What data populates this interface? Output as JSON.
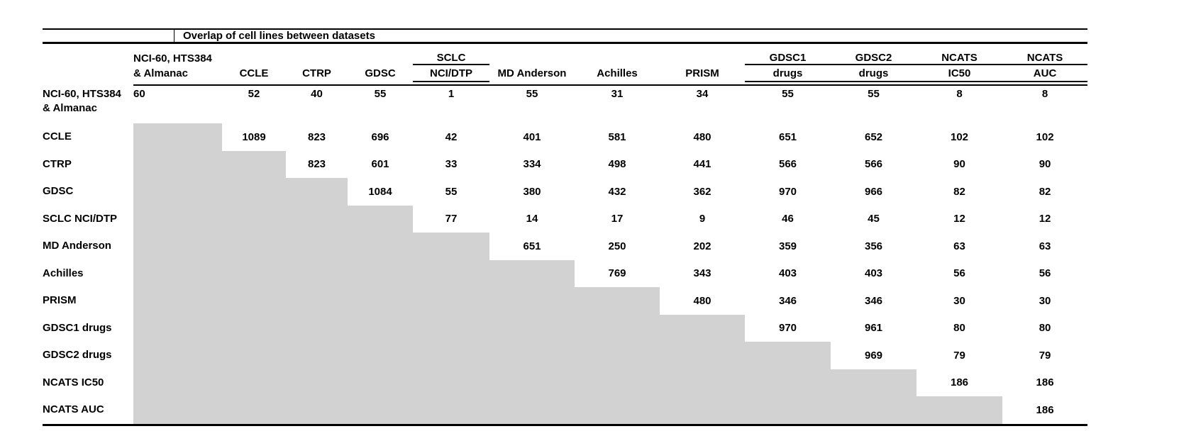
{
  "title": "Overlap of cell lines between datasets",
  "colors": {
    "background": "#ffffff",
    "text": "#000000",
    "rule": "#000000",
    "shaded_cell": "#d2d2d2"
  },
  "table": {
    "columns": [
      {
        "line1": "NCI-60, HTS384",
        "line2": "& Almanac",
        "spanner": false
      },
      {
        "line1": "",
        "line2": "CCLE",
        "spanner": false
      },
      {
        "line1": "",
        "line2": "CTRP",
        "spanner": false
      },
      {
        "line1": "",
        "line2": "GDSC",
        "spanner": false
      },
      {
        "line1": "SCLC",
        "line2": "NCI/DTP",
        "spanner": true
      },
      {
        "line1": "",
        "line2": "MD Anderson",
        "spanner": false
      },
      {
        "line1": "",
        "line2": "Achilles",
        "spanner": false
      },
      {
        "line1": "",
        "line2": "PRISM",
        "spanner": false
      },
      {
        "line1": "GDSC1",
        "line2": "drugs",
        "spanner": true
      },
      {
        "line1": "GDSC2",
        "line2": "drugs",
        "spanner": true
      },
      {
        "line1": "NCATS",
        "line2": "IC50",
        "spanner": true
      },
      {
        "line1": "NCATS",
        "line2": "AUC",
        "spanner": true
      }
    ],
    "rows": [
      {
        "label": "NCI-60, HTS384\n& Almanac",
        "values": [
          60,
          52,
          40,
          55,
          1,
          55,
          31,
          34,
          55,
          55,
          8,
          8
        ]
      },
      {
        "label": "CCLE",
        "values": [
          null,
          1089,
          823,
          696,
          42,
          401,
          581,
          480,
          651,
          652,
          102,
          102
        ]
      },
      {
        "label": "CTRP",
        "values": [
          null,
          null,
          823,
          601,
          33,
          334,
          498,
          441,
          566,
          566,
          90,
          90
        ]
      },
      {
        "label": "GDSC",
        "values": [
          null,
          null,
          null,
          1084,
          55,
          380,
          432,
          362,
          970,
          966,
          82,
          82
        ]
      },
      {
        "label": "SCLC NCI/DTP",
        "values": [
          null,
          null,
          null,
          null,
          77,
          14,
          17,
          9,
          46,
          45,
          12,
          12
        ]
      },
      {
        "label": "MD Anderson",
        "values": [
          null,
          null,
          null,
          null,
          null,
          651,
          250,
          202,
          359,
          356,
          63,
          63
        ]
      },
      {
        "label": "Achilles",
        "values": [
          null,
          null,
          null,
          null,
          null,
          null,
          769,
          343,
          403,
          403,
          56,
          56
        ]
      },
      {
        "label": "PRISM",
        "values": [
          null,
          null,
          null,
          null,
          null,
          null,
          null,
          480,
          346,
          346,
          30,
          30
        ]
      },
      {
        "label": "GDSC1 drugs",
        "values": [
          null,
          null,
          null,
          null,
          null,
          null,
          null,
          null,
          970,
          961,
          80,
          80
        ]
      },
      {
        "label": "GDSC2 drugs",
        "values": [
          null,
          null,
          null,
          null,
          null,
          null,
          null,
          null,
          null,
          969,
          79,
          79
        ]
      },
      {
        "label": "NCATS IC50",
        "values": [
          null,
          null,
          null,
          null,
          null,
          null,
          null,
          null,
          null,
          null,
          186,
          186
        ]
      },
      {
        "label": "NCATS AUC",
        "values": [
          null,
          null,
          null,
          null,
          null,
          null,
          null,
          null,
          null,
          null,
          null,
          186
        ]
      }
    ]
  },
  "chart_data": {
    "type": "table",
    "title": "Overlap of cell lines between datasets",
    "row_labels": [
      "NCI-60, HTS384 & Almanac",
      "CCLE",
      "CTRP",
      "GDSC",
      "SCLC NCI/DTP",
      "MD Anderson",
      "Achilles",
      "PRISM",
      "GDSC1 drugs",
      "GDSC2 drugs",
      "NCATS IC50",
      "NCATS AUC"
    ],
    "col_labels": [
      "NCI-60, HTS384 & Almanac",
      "CCLE",
      "CTRP",
      "GDSC",
      "SCLC NCI/DTP",
      "MD Anderson",
      "Achilles",
      "PRISM",
      "GDSC1 drugs",
      "GDSC2 drugs",
      "NCATS IC50",
      "NCATS AUC"
    ],
    "matrix": [
      [
        60,
        52,
        40,
        55,
        1,
        55,
        31,
        34,
        55,
        55,
        8,
        8
      ],
      [
        null,
        1089,
        823,
        696,
        42,
        401,
        581,
        480,
        651,
        652,
        102,
        102
      ],
      [
        null,
        null,
        823,
        601,
        33,
        334,
        498,
        441,
        566,
        566,
        90,
        90
      ],
      [
        null,
        null,
        null,
        1084,
        55,
        380,
        432,
        362,
        970,
        966,
        82,
        82
      ],
      [
        null,
        null,
        null,
        null,
        77,
        14,
        17,
        9,
        46,
        45,
        12,
        12
      ],
      [
        null,
        null,
        null,
        null,
        null,
        651,
        250,
        202,
        359,
        356,
        63,
        63
      ],
      [
        null,
        null,
        null,
        null,
        null,
        null,
        769,
        343,
        403,
        403,
        56,
        56
      ],
      [
        null,
        null,
        null,
        null,
        null,
        null,
        null,
        480,
        346,
        346,
        30,
        30
      ],
      [
        null,
        null,
        null,
        null,
        null,
        null,
        null,
        null,
        970,
        961,
        80,
        80
      ],
      [
        null,
        null,
        null,
        null,
        null,
        null,
        null,
        null,
        null,
        969,
        79,
        79
      ],
      [
        null,
        null,
        null,
        null,
        null,
        null,
        null,
        null,
        null,
        null,
        186,
        186
      ],
      [
        null,
        null,
        null,
        null,
        null,
        null,
        null,
        null,
        null,
        null,
        null,
        186
      ]
    ],
    "lower_triangle_shaded": true,
    "shaded_color": "#d2d2d2"
  }
}
